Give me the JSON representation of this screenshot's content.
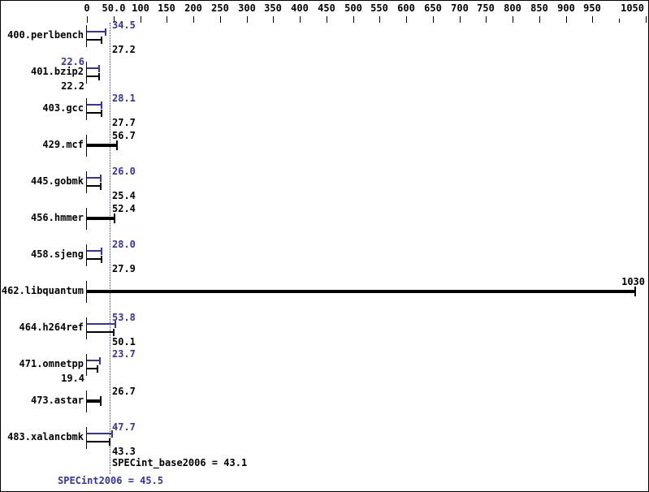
{
  "chart_data": {
    "type": "bar",
    "orientation": "horizontal",
    "title": "",
    "xlabel": "",
    "ylabel": "",
    "xlim": [
      0,
      1050
    ],
    "grid": false,
    "axis_ticks": [
      {
        "value": 0,
        "label": "0"
      },
      {
        "value": 50,
        "label": "50.0"
      },
      {
        "value": 100,
        "label": "100"
      },
      {
        "value": 150,
        "label": "150"
      },
      {
        "value": 200,
        "label": "200"
      },
      {
        "value": 250,
        "label": "250"
      },
      {
        "value": 300,
        "label": "300"
      },
      {
        "value": 350,
        "label": "350"
      },
      {
        "value": 400,
        "label": "400"
      },
      {
        "value": 450,
        "label": "450"
      },
      {
        "value": 500,
        "label": "500"
      },
      {
        "value": 550,
        "label": "550"
      },
      {
        "value": 600,
        "label": "600"
      },
      {
        "value": 650,
        "label": "650"
      },
      {
        "value": 700,
        "label": "700"
      },
      {
        "value": 750,
        "label": "750"
      },
      {
        "value": 800,
        "label": "800"
      },
      {
        "value": 850,
        "label": "850"
      },
      {
        "value": 900,
        "label": "900"
      },
      {
        "value": 950,
        "label": "950"
      },
      {
        "value": 1000,
        "label": ""
      },
      {
        "value": 1050,
        "label": "1050",
        "align": "right"
      }
    ],
    "series_meaning": {
      "peak_color_series": "SPECint2006 (peak)",
      "base_color_series": "SPECint_base2006 (base)"
    },
    "benchmarks": [
      {
        "name": "400.perlbench",
        "peak": 34.5,
        "peak_label": "34.5",
        "peak_side": "right",
        "base": 27.2,
        "base_label": "27.2",
        "base_side": "right",
        "single": false
      },
      {
        "name": "401.bzip2",
        "peak": 22.6,
        "peak_label": "22.6",
        "peak_side": "left",
        "base": 22.2,
        "base_label": "22.2",
        "base_side": "left",
        "single": false
      },
      {
        "name": "403.gcc",
        "peak": 28.1,
        "peak_label": "28.1",
        "peak_side": "right",
        "base": 27.7,
        "base_label": "27.7",
        "base_side": "right",
        "single": false
      },
      {
        "name": "429.mcf",
        "base": 56.7,
        "base_label": "56.7",
        "base_side": "right",
        "single": true
      },
      {
        "name": "445.gobmk",
        "peak": 26.0,
        "peak_label": "26.0",
        "peak_side": "right",
        "base": 25.4,
        "base_label": "25.4",
        "base_side": "right",
        "single": false
      },
      {
        "name": "456.hmmer",
        "base": 52.4,
        "base_label": "52.4",
        "base_side": "right",
        "single": true
      },
      {
        "name": "458.sjeng",
        "peak": 28.0,
        "peak_label": "28.0",
        "peak_side": "right",
        "base": 27.9,
        "base_label": "27.9",
        "base_side": "right",
        "single": false
      },
      {
        "name": "462.libquantum",
        "base": 1030,
        "base_label": "1030",
        "base_side": "end",
        "single": true
      },
      {
        "name": "464.h264ref",
        "peak": 53.8,
        "peak_label": "53.8",
        "peak_side": "right",
        "base": 50.1,
        "base_label": "50.1",
        "base_side": "right",
        "single": false
      },
      {
        "name": "471.omnetpp",
        "peak": 23.7,
        "peak_label": "23.7",
        "peak_side": "right",
        "base": 19.4,
        "base_label": "19.4",
        "base_side": "left",
        "single": false
      },
      {
        "name": "473.astar",
        "base": 26.7,
        "base_label": "26.7",
        "base_side": "right",
        "single": true
      },
      {
        "name": "483.xalancbmk",
        "peak": 47.7,
        "peak_label": "47.7",
        "peak_side": "right",
        "base": 43.3,
        "base_label": "43.3",
        "base_side": "right",
        "single": false
      }
    ],
    "reference_line": {
      "value": 43.1,
      "style": "dotted",
      "color": "#3333aa"
    },
    "footer": {
      "base_text": "SPECint_base2006 = 43.1",
      "base_score": 43.1,
      "peak_text": "SPECint2006 = 45.5",
      "peak_score": 45.5
    },
    "colors": {
      "peak": "#3333aa",
      "base": "#000000",
      "background": "#ffffff",
      "border": "#000000"
    }
  }
}
